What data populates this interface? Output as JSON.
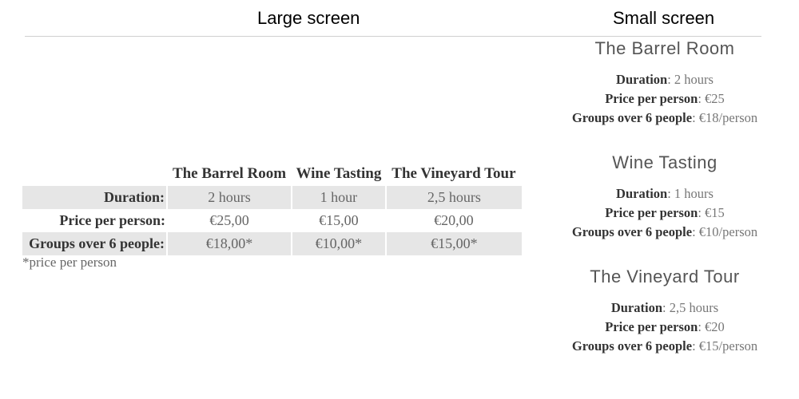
{
  "headers": {
    "large": "Large screen",
    "small": "Small screen"
  },
  "table": {
    "columns": [
      "The Barrel Room",
      "Wine Tasting",
      "The Vineyard Tour"
    ],
    "rows": [
      {
        "label": "Duration:",
        "values": [
          "2 hours",
          "1 hour",
          "2,5 hours"
        ]
      },
      {
        "label": "Price per person:",
        "values": [
          "€25,00",
          "€15,00",
          "€20,00"
        ]
      },
      {
        "label": "Groups over 6 people:",
        "values": [
          "€18,00*",
          "€10,00*",
          "€15,00*"
        ]
      }
    ],
    "footnote": "*price per person"
  },
  "cards": [
    {
      "title": "The Barrel Room",
      "duration_label": "Duration",
      "duration": ": 2 hours",
      "price_label": "Price per person",
      "price": ": €25",
      "groups_label": "Groups over 6 people",
      "groups": ": €18/person"
    },
    {
      "title": "Wine Tasting",
      "duration_label": "Duration",
      "duration": ": 1 hours",
      "price_label": "Price per person",
      "price": ": €15",
      "groups_label": "Groups over 6 people",
      "groups": ": €10/person"
    },
    {
      "title": "The Vineyard Tour",
      "duration_label": "Duration",
      "duration": ": 2,5 hours",
      "price_label": "Price per person",
      "price": ": €20",
      "groups_label": "Groups over 6 people",
      "groups": ": €15/person"
    }
  ]
}
